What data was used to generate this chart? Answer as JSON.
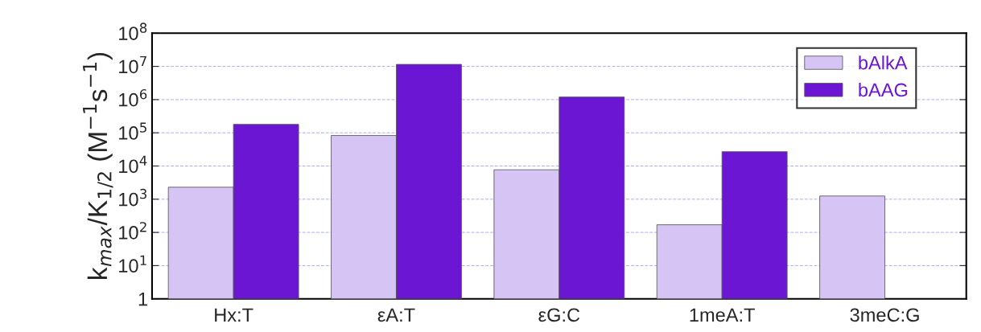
{
  "chart_data": {
    "type": "bar",
    "ylabel": "k$_{max}$/K$_{1/2}$ (M$^{−1}$s$^{−1}$)",
    "categories": [
      "Hx:T",
      "εA:T",
      "εG:C",
      "1meA:T",
      "3meC:G"
    ],
    "series": [
      {
        "name": "bAlkA",
        "color": "#d6c4f4",
        "values": [
          2300,
          83000,
          7700,
          170,
          1250
        ]
      },
      {
        "name": "bAAG",
        "color": "#6a16d2",
        "values": [
          180000,
          11500000,
          1200000,
          27000,
          null
        ]
      }
    ],
    "log": true,
    "ylim": [
      1,
      100000000
    ],
    "yticks": [
      1,
      {
        "value": 10,
        "label": "10$^{1}$"
      },
      {
        "value": 100,
        "label": "10$^{2}$"
      },
      {
        "value": 1000,
        "label": "10$^{3}$"
      },
      {
        "value": 10000,
        "label": "10$^{4}$"
      },
      {
        "value": 100000,
        "label": "10$^{5}$"
      },
      {
        "value": 1000000,
        "label": "10$^{6}$"
      },
      {
        "value": 10000000,
        "label": "10$^{7}$"
      },
      {
        "value": 100000000,
        "label": "10$^{8}$"
      }
    ],
    "grid": "y",
    "legend": "top right"
  }
}
